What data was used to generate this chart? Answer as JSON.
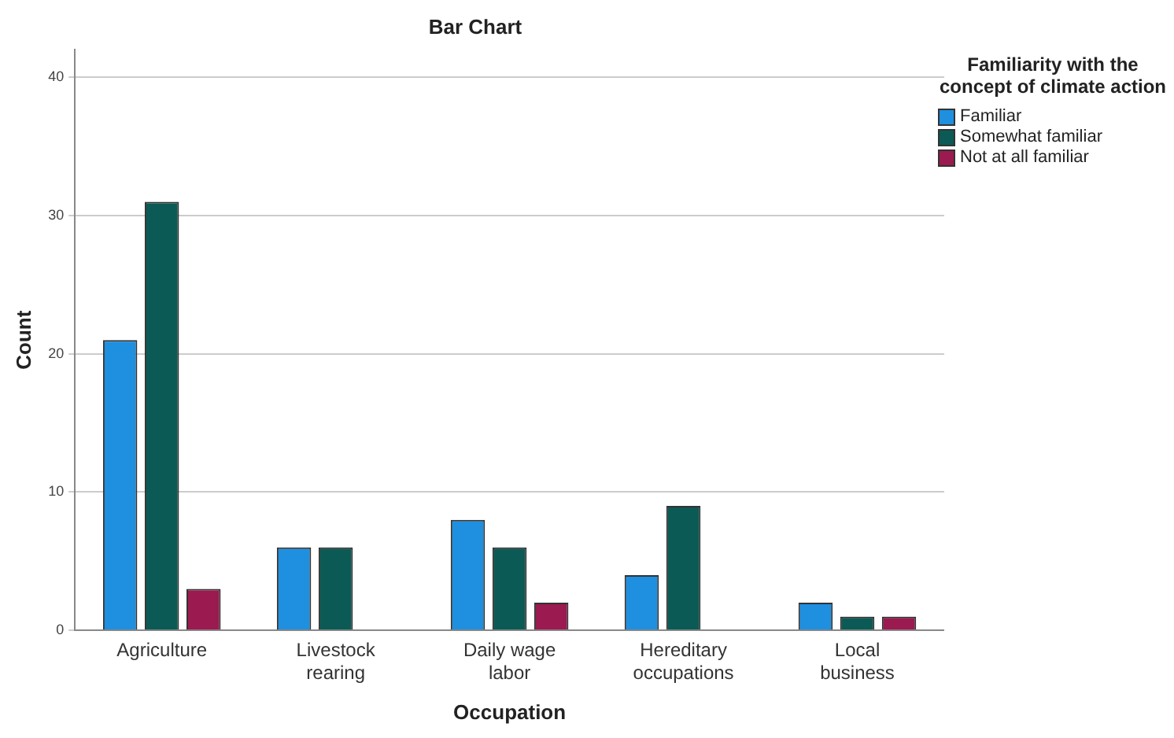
{
  "chart_data": {
    "type": "bar",
    "title": "Bar Chart",
    "xlabel": "Occupation",
    "ylabel": "Count",
    "legend_title": "Familiarity with the concept of climate action",
    "categories": [
      "Agriculture",
      "Livestock rearing",
      "Daily wage labor",
      "Hereditary occupations",
      "Local business"
    ],
    "series": [
      {
        "name": "Familiar",
        "color": "#1f8fe0",
        "values": [
          21,
          6,
          8,
          4,
          2
        ]
      },
      {
        "name": "Somewhat familiar",
        "color": "#0b5a55",
        "values": [
          31,
          6,
          6,
          9,
          1
        ]
      },
      {
        "name": "Not at all familiar",
        "color": "#9b1a4f",
        "values": [
          3,
          null,
          2,
          null,
          1
        ]
      }
    ],
    "ylim": [
      0,
      42
    ],
    "yticks": [
      0,
      10,
      20,
      30,
      40
    ],
    "grid": "y",
    "legend": "top right"
  }
}
